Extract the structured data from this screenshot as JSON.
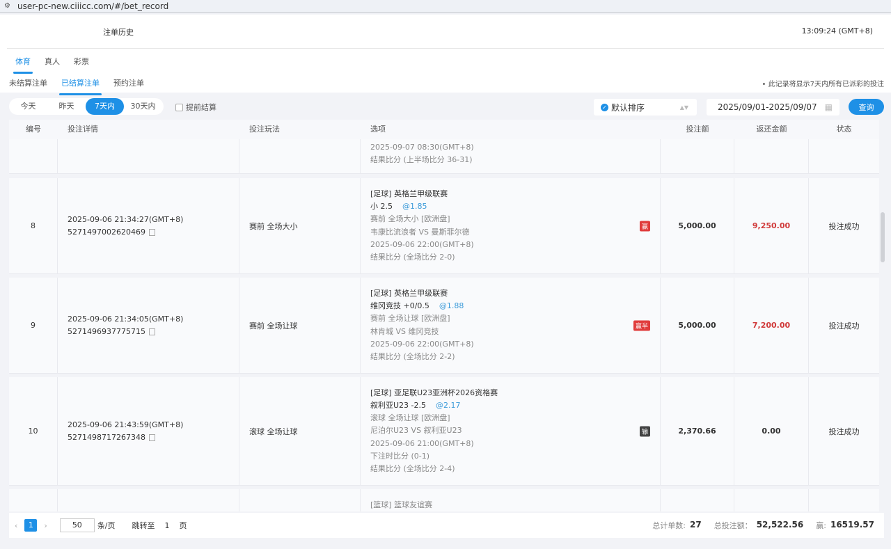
{
  "browser": {
    "url": "user-pc-new.ciiicc.com/#/bet_record"
  },
  "header": {
    "title": "注单历史",
    "clock": "13:09:24 (GMT+8)"
  },
  "tabs": [
    {
      "label": "体育",
      "active": true
    },
    {
      "label": "真人"
    },
    {
      "label": "彩票"
    }
  ],
  "subtabs": [
    {
      "label": "未结算注单"
    },
    {
      "label": "已结算注单",
      "active": true
    },
    {
      "label": "预约注单"
    }
  ],
  "note": "• 此记录将显示7天内所有已派彩的投注",
  "ranges": [
    {
      "label": "今天"
    },
    {
      "label": "昨天"
    },
    {
      "label": "7天内",
      "active": true
    },
    {
      "label": "30天内"
    }
  ],
  "early_settle": "提前结算",
  "sort": "默认排序",
  "date_range": "2025/09/01-2025/09/07",
  "query": "查询",
  "columns": [
    "编号",
    "投注详情",
    "投注玩法",
    "选项",
    "投注额",
    "返还金额",
    "状态"
  ],
  "rows": [
    {
      "no": "",
      "time": "",
      "id": "",
      "play": "",
      "options": [
        "2025-09-07 08:30(GMT+8)",
        "结果比分 (上半场比分 36-31)"
      ],
      "odds": "",
      "badge": "",
      "stake": "",
      "return": "",
      "status": "",
      "partial": "top"
    },
    {
      "no": "8",
      "time": "2025-09-06 21:34:27(GMT+8)",
      "id": "5271497002620469",
      "play": "赛前   全场大小",
      "options": [
        "[足球] 英格兰甲级联赛",
        "小 2.5",
        "赛前   全场大小 [欧洲盘]",
        "韦康比流浪者 VS 曼斯菲尔德",
        "2025-09-06 22:00(GMT+8)",
        "结果比分 (全场比分 2-0)"
      ],
      "odds": "@1.85",
      "badge": "赢",
      "badge_color": "#e03c3c",
      "stake": "5,000.00",
      "return": "9,250.00",
      "return_red": true,
      "status": "投注成功"
    },
    {
      "no": "9",
      "time": "2025-09-06 21:34:05(GMT+8)",
      "id": "5271496937775715",
      "play": "赛前   全场让球",
      "options": [
        "[足球] 英格兰甲级联赛",
        "维冈竞技 +0/0.5",
        "赛前   全场让球 [欧洲盘]",
        "林肯城 VS 维冈竞技",
        "2025-09-06 22:00(GMT+8)",
        "结果比分 (全场比分 2-2)"
      ],
      "odds": "@1.88",
      "badge": "赢半",
      "badge_color": "#e03c3c",
      "stake": "5,000.00",
      "return": "7,200.00",
      "return_red": true,
      "status": "投注成功"
    },
    {
      "no": "10",
      "time": "2025-09-06 21:43:59(GMT+8)",
      "id": "5271498717267348",
      "play": "滚球   全场让球",
      "options": [
        "[足球] 亚足联U23亚洲杯2026资格赛",
        "叙利亚U23 -2.5",
        "滚球   全场让球 [欧洲盘]",
        "尼泊尔U23 VS 叙利亚U23",
        "2025-09-06 21:00(GMT+8)",
        "下注时比分 (0-1)",
        "结果比分 (全场比分 2-4)"
      ],
      "odds": "@2.17",
      "badge": "输",
      "badge_color": "#444444",
      "stake": "2,370.66",
      "return": "0.00",
      "return_red": false,
      "status": "投注成功"
    },
    {
      "no": "",
      "time": "",
      "id": "",
      "play": "",
      "options": [
        "[篮球] 篮球友谊赛"
      ],
      "odds": "",
      "badge": "",
      "stake": "",
      "return": "",
      "status": "",
      "partial": "bottom"
    }
  ],
  "pagination": {
    "prev": "‹",
    "page": "1",
    "next": "›",
    "page_size": "50",
    "per_page": "条/页",
    "jump": "跳转至",
    "jump_value": "1",
    "page_unit": "页"
  },
  "summary": {
    "count_label": "总计单数:",
    "count": "27",
    "stake_label": "总投注额：",
    "stake": "52,522.56",
    "win_label": "赢:",
    "win": "16519.57"
  }
}
